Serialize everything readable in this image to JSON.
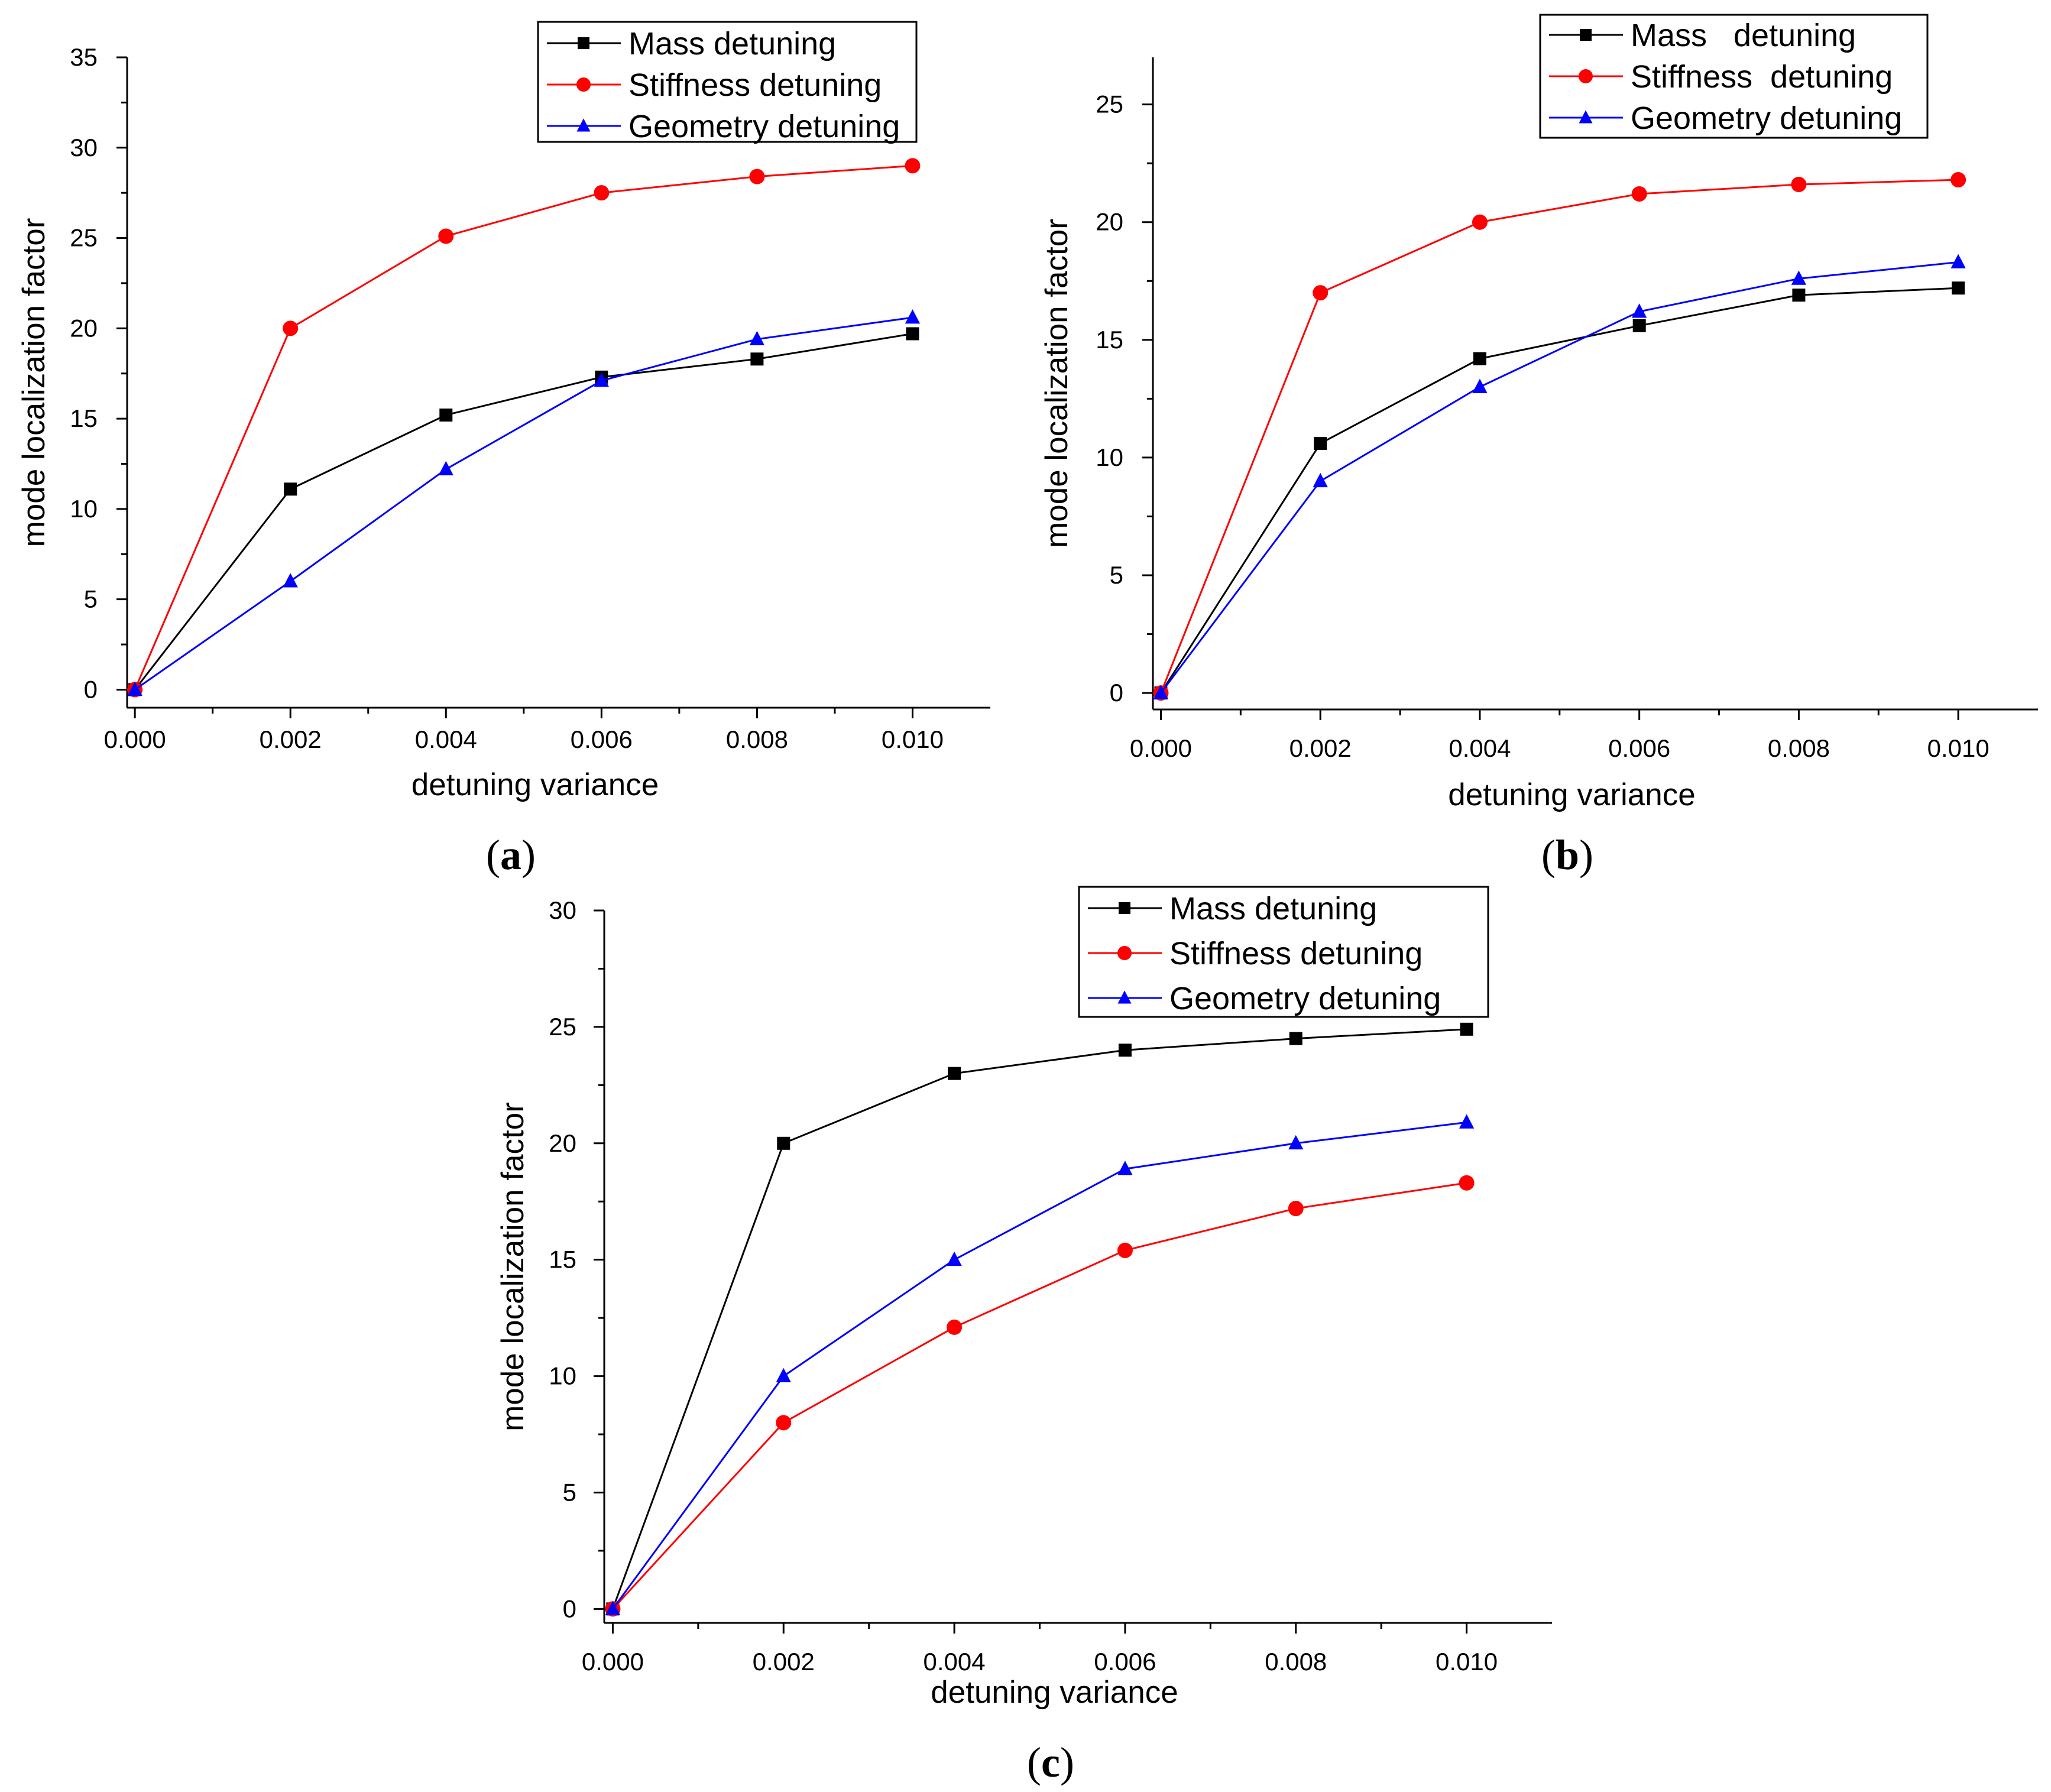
{
  "chart_data": [
    {
      "type": "line",
      "panel_label": "a",
      "xlabel": "detuning variance",
      "ylabel": "mode localization factor",
      "x": [
        0.0,
        0.002,
        0.004,
        0.006,
        0.008,
        0.01
      ],
      "x_tick_labels": [
        "0.000",
        "0.002",
        "0.004",
        "0.006",
        "0.008",
        "0.010"
      ],
      "xlim": [
        -0.0001,
        0.011
      ],
      "ylim": [
        -1,
        35
      ],
      "y_ticks": [
        0,
        5,
        10,
        15,
        20,
        25,
        30,
        35
      ],
      "y_tick_labels": [
        "0",
        "5",
        "10",
        "15",
        "20",
        "25",
        "30",
        "35"
      ],
      "legend_position": "top-right",
      "series": [
        {
          "name": "Mass detuning",
          "color": "#000000",
          "marker": "square",
          "values": [
            0,
            11.1,
            15.2,
            17.3,
            18.3,
            19.7
          ]
        },
        {
          "name": "Stiffness detuning",
          "color": "#ff0000",
          "marker": "circle",
          "values": [
            0,
            20.0,
            25.1,
            27.5,
            28.4,
            29.0
          ]
        },
        {
          "name": "Geometry detuning",
          "color": "#0000ff",
          "marker": "triangle",
          "values": [
            0,
            6.0,
            12.2,
            17.1,
            19.4,
            20.6
          ]
        }
      ]
    },
    {
      "type": "line",
      "panel_label": "b",
      "xlabel": "detuning variance",
      "ylabel": "mode localization factor",
      "x": [
        0.0,
        0.002,
        0.004,
        0.006,
        0.008,
        0.01
      ],
      "x_tick_labels": [
        "0.000",
        "0.002",
        "0.004",
        "0.006",
        "0.008",
        "0.010"
      ],
      "xlim": [
        -0.0001,
        0.011
      ],
      "ylim": [
        -0.7,
        27
      ],
      "y_ticks": [
        0,
        5,
        10,
        15,
        20,
        25
      ],
      "y_tick_labels": [
        "0",
        "5",
        "10",
        "15",
        "20",
        "25"
      ],
      "legend_position": "top-right",
      "series": [
        {
          "name": "Mass   detuning",
          "color": "#000000",
          "marker": "square",
          "values": [
            0,
            10.6,
            14.2,
            15.6,
            16.9,
            17.2
          ]
        },
        {
          "name": "Stiffness  detuning",
          "color": "#ff0000",
          "marker": "circle",
          "values": [
            0,
            17.0,
            20.0,
            21.2,
            21.6,
            21.8
          ]
        },
        {
          "name": "Geometry detuning",
          "color": "#0000ff",
          "marker": "triangle",
          "values": [
            0,
            9.0,
            13.0,
            16.2,
            17.6,
            18.3
          ]
        }
      ]
    },
    {
      "type": "line",
      "panel_label": "c",
      "xlabel": "detuning variance",
      "ylabel": "mode localization factor",
      "x": [
        0.0,
        0.002,
        0.004,
        0.006,
        0.008,
        0.01
      ],
      "x_tick_labels": [
        "0.000",
        "0.002",
        "0.004",
        "0.006",
        "0.008",
        "0.010"
      ],
      "xlim": [
        -0.0001,
        0.011
      ],
      "ylim": [
        -0.6,
        30
      ],
      "y_ticks": [
        0,
        5,
        10,
        15,
        20,
        25,
        30
      ],
      "y_tick_labels": [
        "0",
        "5",
        "10",
        "15",
        "20",
        "25",
        "30"
      ],
      "legend_position": "top-right",
      "series": [
        {
          "name": "Mass detuning",
          "color": "#000000",
          "marker": "square",
          "values": [
            0,
            20.0,
            23.0,
            24.0,
            24.5,
            24.9
          ]
        },
        {
          "name": "Stiffness detuning",
          "color": "#ff0000",
          "marker": "circle",
          "values": [
            0,
            8.0,
            12.1,
            15.4,
            17.2,
            18.3
          ]
        },
        {
          "name": "Geometry detuning",
          "color": "#0000ff",
          "marker": "triangle",
          "values": [
            0,
            10.0,
            15.0,
            18.9,
            20.0,
            20.9
          ]
        }
      ]
    }
  ]
}
